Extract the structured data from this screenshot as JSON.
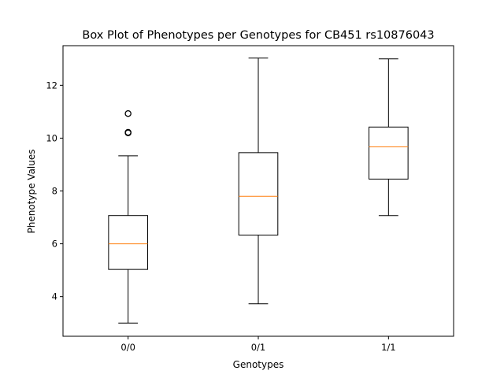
{
  "chart_data": {
    "type": "box",
    "title": "Box Plot of Phenotypes per Genotypes for CB451 rs10876043",
    "xlabel": "Genotypes",
    "ylabel": "Phenotype Values",
    "ylim": [
      2.5,
      13.5
    ],
    "yticks": [
      4,
      6,
      8,
      10,
      12
    ],
    "grid": false,
    "colors": {
      "box": "#000000",
      "median": "#ff7f0e",
      "background": "#ffffff"
    },
    "categories": [
      "0/0",
      "0/1",
      "1/1"
    ],
    "boxes": [
      {
        "category": "0/0",
        "whisker_low": 3.0,
        "q1": 5.03,
        "median": 6.0,
        "q3": 7.07,
        "whisker_high": 9.33,
        "outliers": [
          10.2,
          10.22,
          10.93
        ]
      },
      {
        "category": "0/1",
        "whisker_low": 3.73,
        "q1": 6.33,
        "median": 7.8,
        "q3": 9.45,
        "whisker_high": 13.03,
        "outliers": []
      },
      {
        "category": "1/1",
        "whisker_low": 7.07,
        "q1": 8.45,
        "median": 9.67,
        "q3": 10.42,
        "whisker_high": 13.0,
        "outliers": []
      }
    ]
  }
}
